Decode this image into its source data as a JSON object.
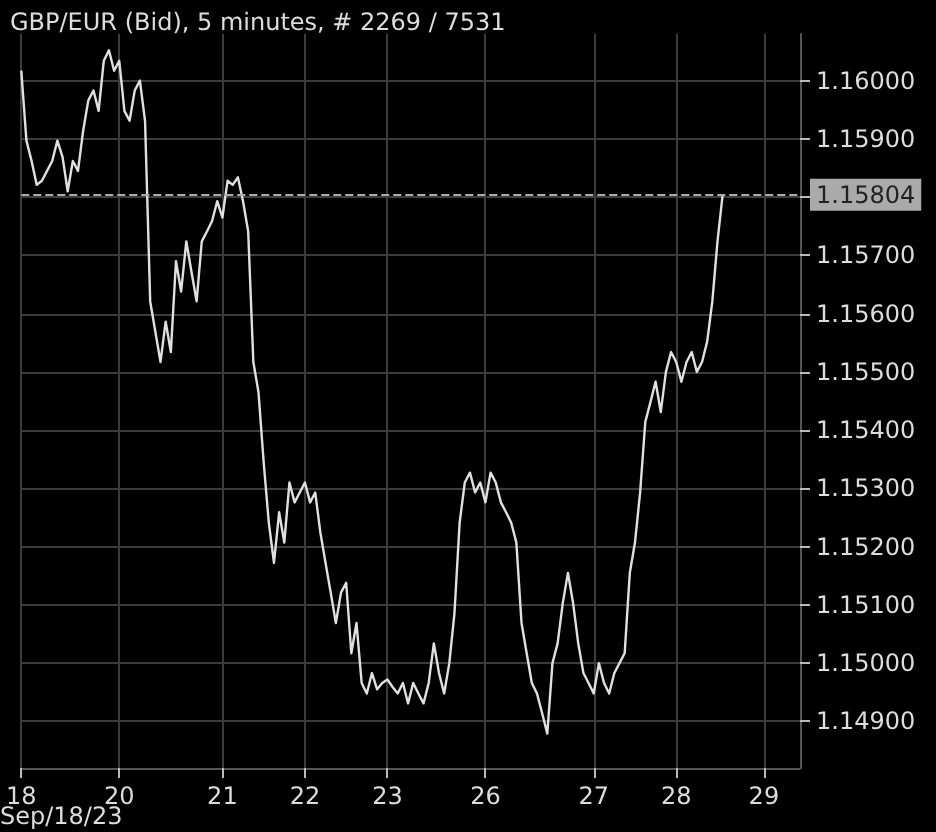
{
  "chart_data": {
    "type": "line",
    "title": "GBP/EUR (Bid), 5 minutes, # 2269 / 7531",
    "xlabel": "Sep/18/23",
    "categories": [
      "18",
      null,
      null,
      null,
      null,
      null,
      null,
      null,
      null,
      null,
      null,
      null,
      null,
      null,
      null,
      null,
      null,
      null,
      null,
      "20",
      null,
      null,
      null,
      null,
      null,
      null,
      null,
      null,
      null,
      null,
      null,
      null,
      null,
      null,
      null,
      null,
      null,
      null,
      null,
      "21",
      null,
      null,
      null,
      null,
      null,
      null,
      null,
      null,
      null,
      null,
      null,
      null,
      null,
      null,
      null,
      "22",
      null,
      null,
      null,
      null,
      null,
      null,
      null,
      null,
      null,
      null,
      null,
      null,
      null,
      null,
      null,
      "23",
      null,
      null,
      null,
      null,
      null,
      null,
      null,
      null,
      null,
      null,
      null,
      null,
      null,
      null,
      null,
      null,
      null,
      null,
      "26",
      null,
      null,
      null,
      null,
      null,
      null,
      null,
      null,
      null,
      null,
      null,
      null,
      null,
      null,
      null,
      null,
      null,
      null,
      null,
      null,
      "27",
      null,
      null,
      null,
      null,
      null,
      null,
      null,
      null,
      null,
      null,
      null,
      null,
      null,
      null,
      null,
      "28",
      null,
      null,
      null,
      null,
      null,
      null,
      null,
      null,
      null,
      null,
      null,
      null,
      null,
      null,
      null,
      null,
      "29",
      null,
      null,
      null,
      null,
      null,
      null,
      null
    ],
    "series": [
      {
        "color": "#e0e0e0",
        "values": [
          1.16017,
          1.15897,
          1.15862,
          1.15821,
          1.15828,
          1.15845,
          1.15862,
          1.15897,
          1.15869,
          1.1581,
          1.15862,
          1.15845,
          1.15914,
          1.15966,
          1.15983,
          1.15948,
          1.16034,
          1.16052,
          1.16017,
          1.16034,
          1.15948,
          1.15931,
          1.15983,
          1.16,
          1.15931,
          1.15621,
          1.15569,
          1.15517,
          1.15586,
          1.15534,
          1.1569,
          1.15638,
          1.15724,
          1.15672,
          1.15621,
          1.15724,
          1.15741,
          1.15759,
          1.15793,
          1.15765,
          1.15828,
          1.15821,
          1.15834,
          1.15793,
          1.15741,
          1.15517,
          1.15465,
          1.15345,
          1.15241,
          1.15172,
          1.15259,
          1.15207,
          1.1531,
          1.15276,
          1.15293,
          1.1531,
          1.15276,
          1.15293,
          1.15224,
          1.15172,
          1.15121,
          1.15069,
          1.15121,
          1.15138,
          1.15017,
          1.15069,
          1.14966,
          1.14948,
          1.14983,
          1.14955,
          1.14966,
          1.14972,
          1.14959,
          1.14948,
          1.14966,
          1.14931,
          1.14966,
          1.14948,
          1.14931,
          1.14966,
          1.15034,
          1.14983,
          1.14948,
          1.15,
          1.15086,
          1.15241,
          1.1531,
          1.15327,
          1.15293,
          1.1531,
          1.15276,
          1.15327,
          1.1531,
          1.15276,
          1.15259,
          1.15241,
          1.15207,
          1.15069,
          1.15017,
          1.14966,
          1.14948,
          1.14914,
          1.14879,
          1.15,
          1.15034,
          1.15103,
          1.15155,
          1.15103,
          1.15034,
          1.14983,
          1.14966,
          1.14948,
          1.15,
          1.14966,
          1.14948,
          1.14983,
          1.15,
          1.15017,
          1.15155,
          1.15207,
          1.15293,
          1.15414,
          1.15448,
          1.15483,
          1.15431,
          1.155,
          1.15534,
          1.15517,
          1.15483,
          1.15517,
          1.15534,
          1.155,
          1.15517,
          1.15552,
          1.15621,
          1.15724,
          1.15804,
          null,
          null,
          null,
          null,
          null,
          null,
          null,
          null,
          null,
          null,
          null,
          null,
          null,
          null,
          null
        ]
      }
    ],
    "ylim": [
      1.1482,
      1.1608
    ],
    "yticks": [
      {
        "value": 1.149,
        "label": "1.14900"
      },
      {
        "value": 1.15,
        "label": "1.15000"
      },
      {
        "value": 1.151,
        "label": "1.15100"
      },
      {
        "value": 1.152,
        "label": "1.15200"
      },
      {
        "value": 1.153,
        "label": "1.15300"
      },
      {
        "value": 1.154,
        "label": "1.15400"
      },
      {
        "value": 1.155,
        "label": "1.15500"
      },
      {
        "value": 1.156,
        "label": "1.15600"
      },
      {
        "value": 1.157,
        "label": "1.15700"
      },
      {
        "value": 1.158,
        "label": null
      },
      {
        "value": 1.159,
        "label": "1.15900"
      },
      {
        "value": 1.16,
        "label": "1.16000"
      }
    ],
    "ref_lines": [
      {
        "axis": "y",
        "value": 1.15804,
        "label": "1.15804",
        "color": "#aaaaaa",
        "line_style": "dashed"
      }
    ],
    "grid": true,
    "marker": "none",
    "line_style": "solid"
  }
}
